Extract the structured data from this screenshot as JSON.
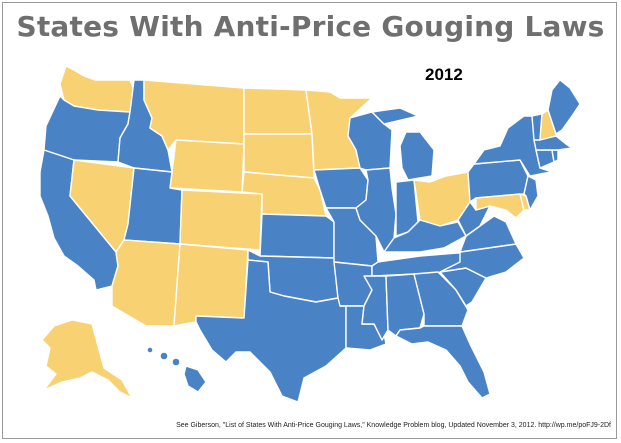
{
  "title": "States With Anti-Price Gouging Laws",
  "year": "2012",
  "credit": "See Giberson, \"List of States With Anti-Price Gouging Laws,\" Knowledge Problem blog, Updated November 3, 2012. http://wp.me/poFJ9-2Df",
  "colors": {
    "law": "#4a83c5",
    "no_law": "#f7d172"
  },
  "states_with_law": [
    "WA-? no"
  ],
  "legend_note": ""
}
